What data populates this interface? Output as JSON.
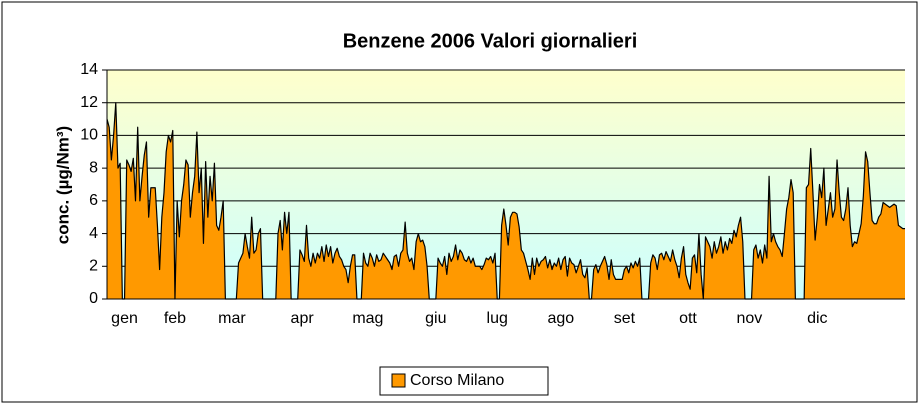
{
  "chart_data": {
    "type": "area",
    "title": "Benzene 2006 Valori giornalieri",
    "y_label": "conc. (µg/Nm³)",
    "xlim": [
      0,
      364
    ],
    "xticks": [
      {
        "value": 8,
        "label": "gen"
      },
      {
        "value": 31,
        "label": "feb"
      },
      {
        "value": 57,
        "label": "mar"
      },
      {
        "value": 89,
        "label": "apr"
      },
      {
        "value": 119,
        "label": "mag"
      },
      {
        "value": 150,
        "label": "giu"
      },
      {
        "value": 178,
        "label": "lug"
      },
      {
        "value": 207,
        "label": "ago"
      },
      {
        "value": 236,
        "label": "set"
      },
      {
        "value": 265,
        "label": "ott"
      },
      {
        "value": 293,
        "label": "nov"
      },
      {
        "value": 324,
        "label": "dic"
      }
    ],
    "ylim": [
      0,
      14
    ],
    "yticks": [
      0,
      2,
      4,
      6,
      8,
      10,
      12,
      14
    ],
    "grid": true,
    "legend": "bottom",
    "series": [
      {
        "name": "Corso Milano",
        "color": "#ff9900",
        "values": [
          11,
          10.5,
          8.5,
          10,
          12,
          8,
          8.3,
          0,
          0,
          8.5,
          8.2,
          7.8,
          8.6,
          6,
          10.5,
          6,
          7.5,
          8.8,
          9.6,
          5,
          6.8,
          6.8,
          6.8,
          4.5,
          1.8,
          5,
          6.5,
          9,
          10,
          9.6,
          10.3,
          0,
          6,
          3.8,
          6,
          7,
          8.5,
          8.2,
          5,
          6.5,
          7.5,
          10.2,
          6.5,
          8,
          3.4,
          8.4,
          5,
          7.5,
          6,
          8.3,
          4.5,
          4.2,
          5,
          6,
          0,
          0,
          0,
          0,
          0,
          0,
          2.2,
          2.5,
          2.8,
          4,
          3.2,
          2.5,
          5,
          2.8,
          3,
          4,
          4.3,
          0,
          0,
          0,
          0,
          0,
          0,
          0,
          4,
          4.8,
          3,
          5.3,
          4,
          5.3,
          0,
          0,
          0,
          0,
          3,
          2.7,
          2.3,
          4.5,
          2.5,
          2,
          2.8,
          2.2,
          2.8,
          2.5,
          3.2,
          2.3,
          3.3,
          2.6,
          3.2,
          2.2,
          2.8,
          3.1,
          2.6,
          2.4,
          2,
          1.8,
          1,
          2,
          2.7,
          2.7,
          0,
          0,
          0,
          2.8,
          2.2,
          2,
          2.8,
          2.5,
          2,
          2.7,
          2.3,
          2.4,
          2.8,
          2.6,
          2.4,
          2.2,
          1.8,
          2.6,
          2.7,
          2,
          2.8,
          3,
          4.7,
          2.8,
          2.3,
          2.5,
          1.8,
          3.5,
          4,
          3.5,
          3.6,
          3.2,
          2,
          0,
          0,
          0,
          0,
          2.5,
          2.2,
          2,
          2.6,
          1.5,
          2.8,
          2.3,
          2.6,
          3.3,
          2.4,
          3,
          2.8,
          2.4,
          2.3,
          2.6,
          2.2,
          2.5,
          2,
          2,
          2,
          1.8,
          2.1,
          2.5,
          2.4,
          2.6,
          2.2,
          2.8,
          0,
          0,
          4.5,
          5.5,
          4.5,
          3.3,
          5,
          5.3,
          5.3,
          5.2,
          4.4,
          3,
          2.8,
          2.3,
          1.8,
          1.2,
          2.5,
          1.5,
          2.5,
          2,
          2.3,
          2.4,
          2.6,
          1.9,
          2.4,
          1.8,
          2.2,
          2,
          2.5,
          1.8,
          2.4,
          2.6,
          1.4,
          2.5,
          2.2,
          2.1,
          1.6,
          2,
          2.4,
          1.5,
          1.3,
          1.9,
          0,
          0,
          1.8,
          2.1,
          1.6,
          2,
          2.3,
          2.6,
          2.1,
          1.2,
          2.4,
          1.5,
          1.2,
          1.2,
          1.2,
          1.2,
          1.8,
          2,
          1.6,
          2.2,
          1.9,
          2.3,
          2,
          2.5,
          0,
          0,
          0,
          0,
          2.2,
          2.7,
          2.5,
          1.8,
          2.7,
          2.8,
          2.4,
          2.9,
          2.6,
          2.3,
          3,
          2.4,
          2,
          1.3,
          2.5,
          3.2,
          1.5,
          1,
          0.6,
          2.5,
          2.7,
          1.6,
          4,
          1.5,
          0,
          3.8,
          3.5,
          3.2,
          2.5,
          3.5,
          2.8,
          3.2,
          3.8,
          2.8,
          3.5,
          3,
          3.7,
          3.4,
          4.2,
          3.8,
          4.5,
          5,
          3.5,
          0,
          0,
          0,
          0,
          3,
          3.3,
          2.5,
          3,
          2.2,
          3.3,
          2.5,
          7.5,
          3.5,
          4,
          3.5,
          3.2,
          3,
          2.6,
          4,
          5.5,
          6.2,
          7.3,
          6.5,
          0,
          0,
          0,
          0,
          0,
          6.8,
          7,
          9.2,
          6.5,
          3.6,
          5,
          7,
          6.2,
          8,
          4.5,
          5.5,
          6.5,
          5,
          5.5,
          8.5,
          6.5,
          5,
          4.8,
          5.5,
          6.8,
          4.5,
          3.2,
          3.5,
          3.4,
          4,
          4.6,
          6.3,
          9,
          8.4,
          6.5,
          4.8,
          4.6,
          4.6,
          5,
          5.2,
          5.9,
          5.8,
          5.7,
          5.6,
          5.7,
          5.8,
          5.7,
          4.5,
          4.4,
          4.3,
          4.3
        ]
      }
    ]
  }
}
